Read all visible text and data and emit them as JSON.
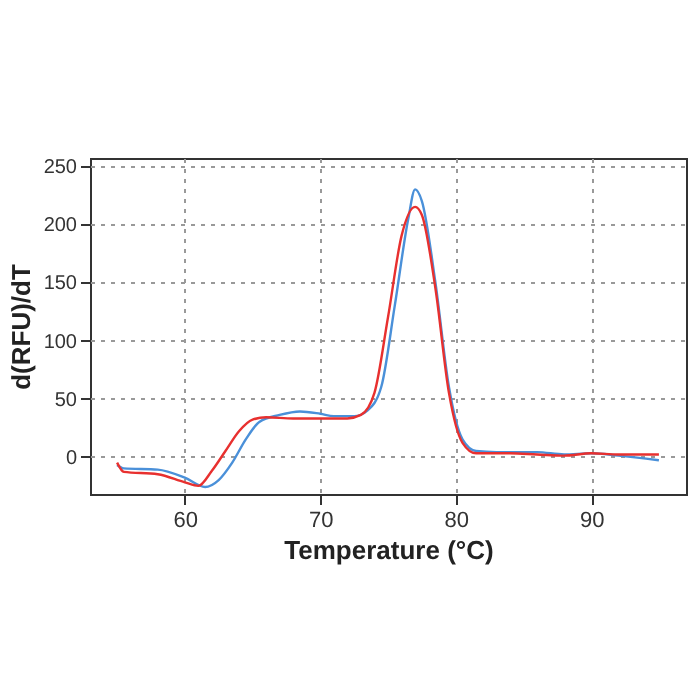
{
  "chart_data": {
    "type": "line",
    "xlabel": "Temperature (°C)",
    "ylabel": "d(RFU)/dT",
    "xlim": [
      53,
      97
    ],
    "xticks": [
      60,
      70,
      80,
      90
    ],
    "ylim": [
      -32,
      257
    ],
    "yticks": [
      0,
      50,
      100,
      150,
      200,
      250
    ],
    "grid": true,
    "line_style": "solid",
    "series": [
      {
        "color": "#4a90d9",
        "x": [
          55,
          55.5,
          58,
          60,
          61.5,
          62.5,
          63.5,
          64.5,
          65.5,
          67,
          68.5,
          70,
          71,
          72.5,
          73.5,
          74.5,
          75.5,
          76.5,
          77,
          77.5,
          78.5,
          79.5,
          80.5,
          81.5,
          83,
          86,
          88,
          90,
          92,
          95
        ],
        "values": [
          -7,
          -10,
          -11,
          -18,
          -26,
          -20,
          -5,
          15,
          30,
          36,
          39,
          37,
          35,
          35,
          40,
          60,
          130,
          205,
          230,
          220,
          150,
          60,
          15,
          5,
          4,
          4,
          2,
          3,
          1,
          -3
        ]
      },
      {
        "color": "#e8302f",
        "x": [
          55,
          55.5,
          58,
          60,
          61,
          62,
          63,
          64,
          65,
          66,
          68,
          70,
          72,
          73,
          74,
          75,
          76,
          77,
          77.5,
          78.5,
          79.5,
          80.5,
          81.5,
          84,
          86,
          88,
          90,
          92,
          95
        ],
        "values": [
          -5,
          -13,
          -15,
          -22,
          -25,
          -12,
          5,
          22,
          32,
          34,
          33,
          33,
          33,
          36,
          55,
          120,
          190,
          215,
          208,
          145,
          55,
          12,
          3,
          3,
          2,
          1,
          3,
          2,
          2
        ]
      }
    ]
  }
}
